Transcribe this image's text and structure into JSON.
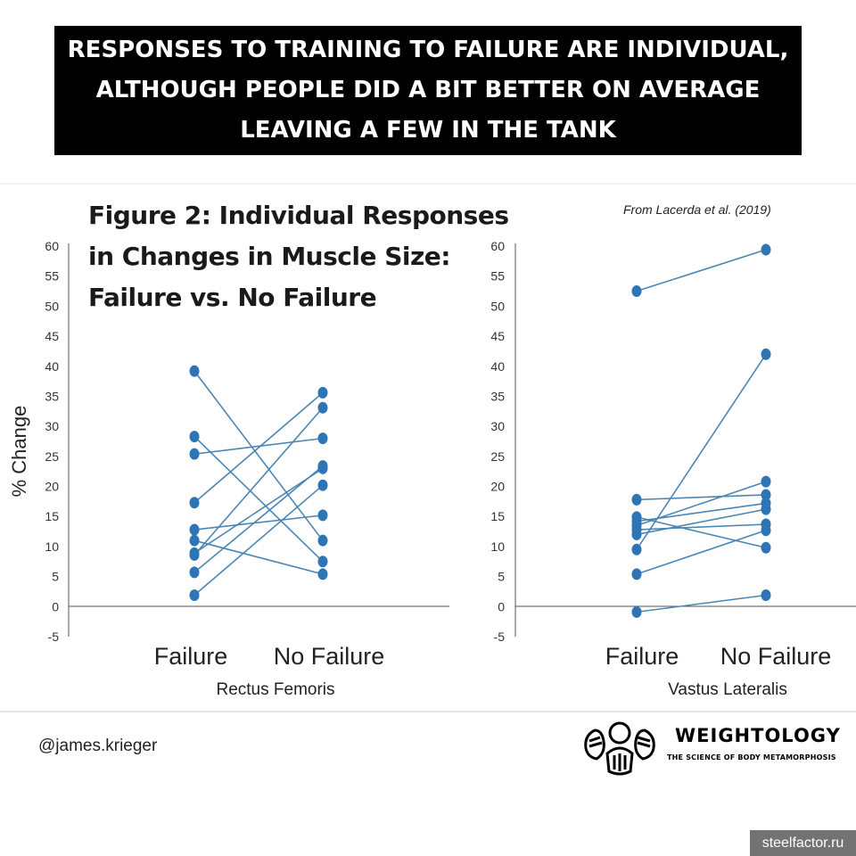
{
  "banner": {
    "text": "RESPONSES TO TRAINING TO FAILURE ARE INDIVIDUAL, ALTHOUGH PEOPLE DID A BIT BETTER ON AVERAGE LEAVING A FEW IN THE TANK"
  },
  "figure": {
    "title": "Figure 2: Individual Responses in Changes in Muscle Size: Failure vs. No Failure",
    "source": "From Lacerda et al. (2019)"
  },
  "colors": {
    "series": "#4a86b3",
    "marker": "#2e75b6",
    "axis": "#555555"
  },
  "chart_data": [
    {
      "type": "line",
      "xlabel": "Rectus Femoris",
      "ylabel": "% Change",
      "categories": [
        "Failure",
        "No Failure"
      ],
      "ylim": [
        -5,
        60
      ],
      "yticks": [
        -5,
        0,
        5,
        10,
        15,
        20,
        25,
        30,
        35,
        40,
        45,
        50,
        55,
        60
      ],
      "series": [
        {
          "values": [
            39.2,
            11.0
          ]
        },
        {
          "values": [
            28.3,
            7.5
          ]
        },
        {
          "values": [
            25.4,
            28.0
          ]
        },
        {
          "values": [
            17.3,
            35.6
          ]
        },
        {
          "values": [
            12.8,
            15.2
          ]
        },
        {
          "values": [
            11.0,
            5.4
          ]
        },
        {
          "values": [
            8.6,
            33.1
          ]
        },
        {
          "values": [
            5.7,
            23.4
          ]
        },
        {
          "values": [
            1.9,
            20.2
          ]
        },
        {
          "values": [
            8.9,
            23.0
          ]
        }
      ]
    },
    {
      "type": "line",
      "xlabel": "Vastus Lateralis",
      "ylabel": "",
      "categories": [
        "Failure",
        "No Failure"
      ],
      "ylim": [
        -5,
        60
      ],
      "yticks": [
        -5,
        0,
        5,
        10,
        15,
        20,
        25,
        30,
        35,
        40,
        45,
        50,
        55,
        60
      ],
      "series": [
        {
          "values": [
            52.5,
            59.4
          ]
        },
        {
          "values": [
            9.5,
            42.0
          ]
        },
        {
          "values": [
            17.8,
            18.6
          ]
        },
        {
          "values": [
            14.9,
            9.8
          ]
        },
        {
          "values": [
            14.2,
            17.2
          ]
        },
        {
          "values": [
            13.5,
            20.8
          ]
        },
        {
          "values": [
            12.8,
            13.7
          ]
        },
        {
          "values": [
            12.0,
            16.2
          ]
        },
        {
          "values": [
            5.4,
            12.7
          ]
        },
        {
          "values": [
            -0.9,
            1.9
          ]
        }
      ]
    }
  ],
  "footer": {
    "credit": "@james.krieger",
    "logo_name": "WEIGHTOLOGY",
    "logo_tagline": "THE SCIENCE OF BODY METAMORPHOSIS",
    "watermark": "steelfactor.ru"
  }
}
